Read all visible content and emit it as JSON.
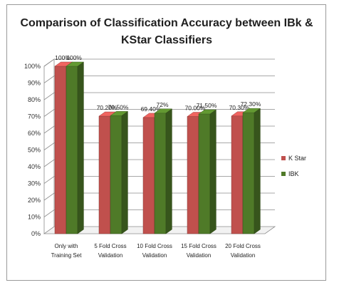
{
  "chart_data": {
    "type": "bar",
    "title_lines": [
      "Comparison of Classification Accuracy between IBk &",
      "KStar Classifiers"
    ],
    "categories": [
      [
        "Only with",
        "Training Set"
      ],
      [
        "5 Fold Cross",
        "Validation"
      ],
      [
        "10 Fold Cross",
        "Validation"
      ],
      [
        "15 Fold Cross",
        "Validation"
      ],
      [
        "20 Fold Cross",
        "Validation"
      ]
    ],
    "series": [
      {
        "name": "K Star",
        "values": [
          100,
          70.2,
          69.4,
          70.0,
          70.3
        ],
        "labels": [
          "100%",
          "70.20%",
          "69.40%",
          "70.00%",
          "70.30%"
        ],
        "color": "#c0504d"
      },
      {
        "name": "IBK",
        "values": [
          100,
          70.5,
          72,
          71.5,
          72.3
        ],
        "labels": [
          "100%",
          "70.50%",
          "72%",
          "71.50%",
          "72.30%"
        ],
        "color": "#4f7a28"
      }
    ],
    "yticks": [
      "0%",
      "10%",
      "20%",
      "30%",
      "40%",
      "50%",
      "60%",
      "70%",
      "80%",
      "90%",
      "100%"
    ],
    "ylim": [
      0,
      100
    ],
    "grid": true,
    "legend_position": "right",
    "xlabel": "",
    "ylabel": ""
  }
}
